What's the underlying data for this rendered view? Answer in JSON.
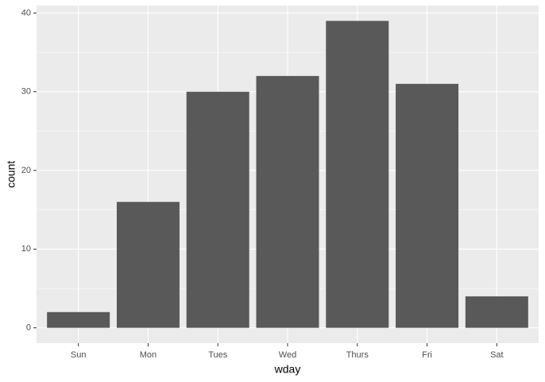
{
  "chart_data": {
    "type": "bar",
    "x_label": "wday",
    "y_label": "count",
    "categories": [
      "Sun",
      "Mon",
      "Tues",
      "Wed",
      "Thurs",
      "Fri",
      "Sat"
    ],
    "values": [
      2,
      16,
      30,
      32,
      39,
      31,
      4
    ],
    "color": "#595959",
    "ylim": [
      -1.95,
      40.95
    ],
    "yticks": [
      0,
      10,
      20,
      30,
      40
    ],
    "grid": true
  }
}
